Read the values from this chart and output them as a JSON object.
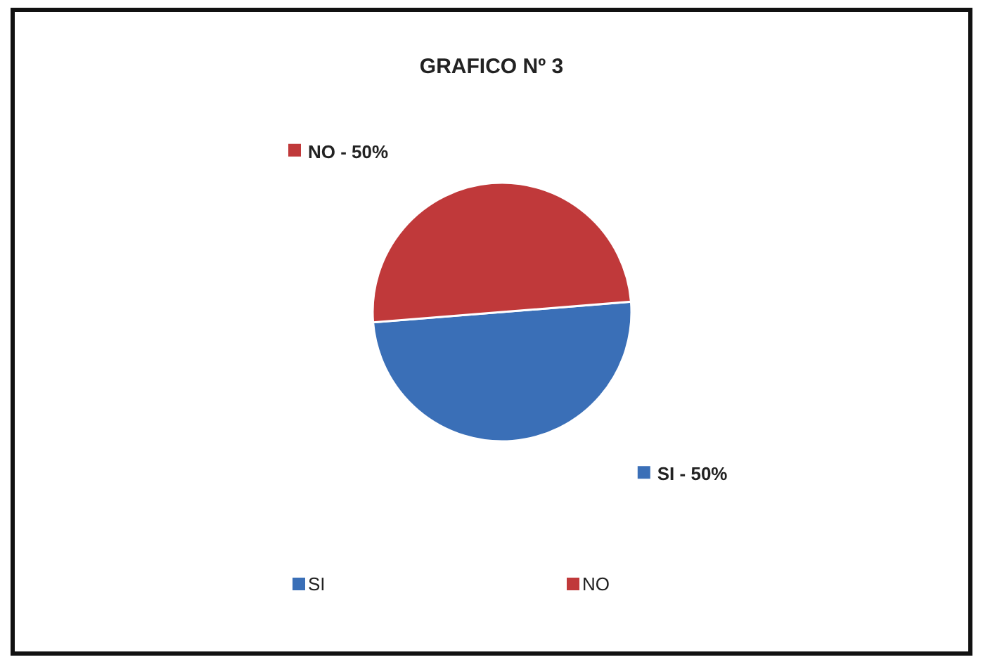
{
  "chart_data": {
    "type": "pie",
    "title": "GRAFICO Nº 3",
    "categories": [
      "SI",
      "NO"
    ],
    "values": [
      50,
      50
    ],
    "colors": [
      "#3a6fb7",
      "#c0393a"
    ],
    "annotations": [
      "SI - 50%",
      "NO - 50%"
    ],
    "legend": "bottom"
  }
}
